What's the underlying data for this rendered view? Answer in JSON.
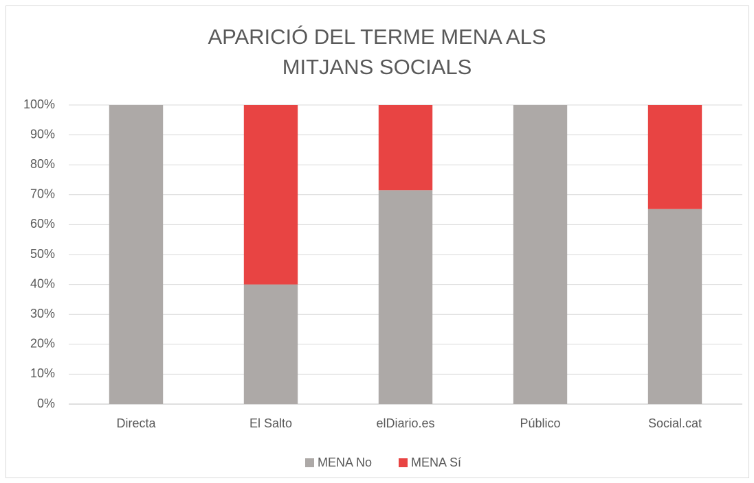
{
  "chart_data": {
    "type": "stacked_bar",
    "title": "APARICIÓ DEL TERME MENA ALS MITJANS SOCIALS",
    "categories": [
      "Directa",
      "El Salto",
      "elDiario.es",
      "Público",
      "Social.cat"
    ],
    "series": [
      {
        "name": "MENA No",
        "color": "#ada9a7",
        "values": [
          100,
          40,
          71.5,
          100,
          65.2
        ]
      },
      {
        "name": "MENA Sí",
        "color": "#e84443",
        "values": [
          0,
          60,
          28.5,
          0,
          34.8
        ]
      }
    ],
    "ylim": [
      0,
      100
    ],
    "yticks": [
      {
        "value": 0,
        "label": "0%"
      },
      {
        "value": 10,
        "label": "10%"
      },
      {
        "value": 20,
        "label": "20%"
      },
      {
        "value": 30,
        "label": "30%"
      },
      {
        "value": 40,
        "label": "40%"
      },
      {
        "value": 50,
        "label": "50%"
      },
      {
        "value": 60,
        "label": "60%"
      },
      {
        "value": 70,
        "label": "70%"
      },
      {
        "value": 80,
        "label": "80%"
      },
      {
        "value": 90,
        "label": "90%"
      },
      {
        "value": 100,
        "label": "100%"
      }
    ],
    "grid": true,
    "legend": "bottom"
  }
}
